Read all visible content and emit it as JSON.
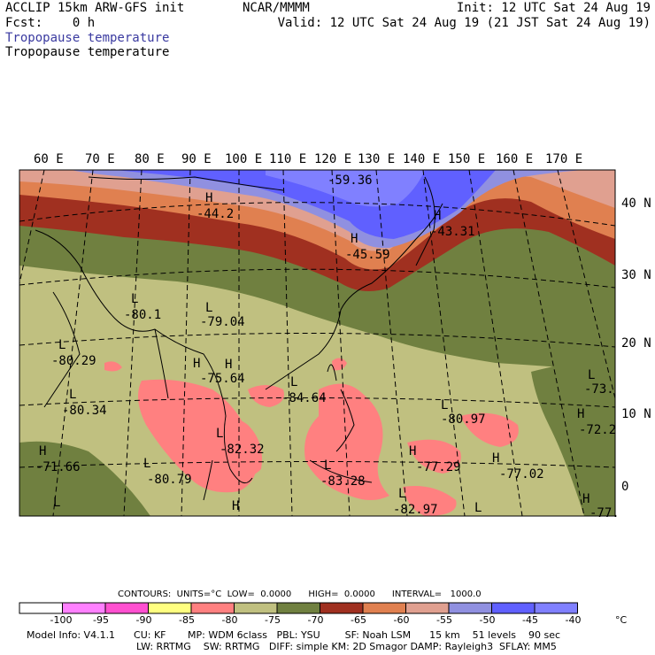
{
  "header": {
    "left_line1": "ACCLIP 15km ARW-GFS init",
    "left_line2": "Fcst:    0 h",
    "center": "NCAR/MMMM",
    "right_line1": "Init: 12 UTC Sat 24 Aug 19",
    "right_line2": "Valid: 12 UTC Sat 24 Aug 19 (21 JST Sat 24 Aug 19)"
  },
  "titles": {
    "blue": "Tropopause temperature",
    "black": "Tropopause temperature"
  },
  "map": {
    "lon_labels": [
      "60 E",
      "70 E",
      "80 E",
      "90 E",
      "100 E",
      "110 E",
      "120 E",
      "130 E",
      "140 E",
      "150 E",
      "160 E",
      "170 E"
    ],
    "lat_labels": [
      "40 N",
      "30 N",
      "20 N",
      "10 N",
      "0"
    ],
    "extrema": [
      {
        "symbol": "H",
        "value": "-44.2"
      },
      {
        "symbol": "",
        "value": "-59.36"
      },
      {
        "symbol": "H",
        "value": "-45.59"
      },
      {
        "symbol": "H",
        "value": "-43.31"
      },
      {
        "symbol": "L",
        "value": "-80.1"
      },
      {
        "symbol": "L",
        "value": "-79.04"
      },
      {
        "symbol": "L",
        "value": "-80.29"
      },
      {
        "symbol": "L",
        "value": "-80.34"
      },
      {
        "symbol": "H",
        "value": "-75.64"
      },
      {
        "symbol": "L",
        "value": "-84.64"
      },
      {
        "symbol": "L",
        "value": "-80.97"
      },
      {
        "symbol": "L",
        "value": "-73."
      },
      {
        "symbol": "H",
        "value": "-72.2"
      },
      {
        "symbol": "L",
        "value": "-82.32"
      },
      {
        "symbol": "H",
        "value": "-71.66"
      },
      {
        "symbol": "L",
        "value": "-80.79"
      },
      {
        "symbol": "L",
        "value": "-83.28"
      },
      {
        "symbol": "H",
        "value": "-77.29"
      },
      {
        "symbol": "H",
        "value": "-77.02"
      },
      {
        "symbol": "L",
        "value": "-82.97"
      },
      {
        "symbol": "H",
        "value": "-77."
      },
      {
        "symbol": "L",
        "value": ""
      },
      {
        "symbol": "H",
        "value": ""
      },
      {
        "symbol": "L",
        "value": ""
      },
      {
        "symbol": "H",
        "value": ""
      }
    ]
  },
  "colorbar": {
    "info": "CONTOURS:  UNITS=°C  LOW=  0.0000      HIGH=  0.0000      INTERVAL=   1000.0",
    "colors": [
      "#ffffff",
      "#ff80ff",
      "#ff50d0",
      "#ffff80",
      "#ff8080",
      "#c0c080",
      "#708040",
      "#a03020",
      "#e08050",
      "#e0a090",
      "#9090e0",
      "#6060ff",
      "#8080ff"
    ],
    "labels": [
      "-100",
      "-95",
      "-90",
      "-85",
      "-80",
      "-75",
      "-70",
      "-65",
      "-60",
      "-55",
      "-50",
      "-45",
      "-40",
      "°C"
    ]
  },
  "footer": {
    "line1": "Model Info: V4.1.1      CU: KF       MP: WDM 6class   PBL: YSU        SF: Noah LSM      15 km    51 levels    90 sec",
    "line2": "LW: RRTMG    SW: RRTMG   DIFF: simple KM: 2D Smagor DAMP: Rayleigh3  SFLAY: MM5"
  }
}
